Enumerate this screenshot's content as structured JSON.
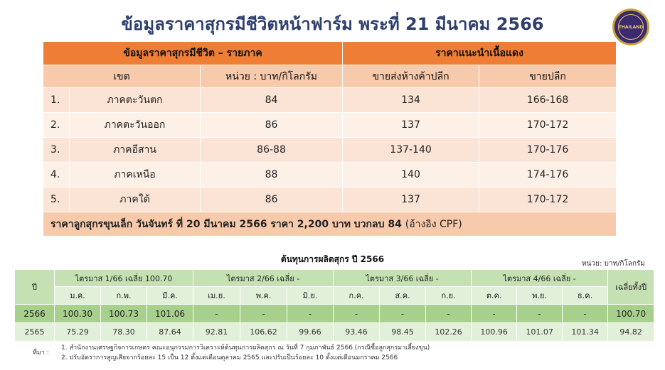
{
  "title": "ข้อมูลราคาสุกรมีชีวิตหน้าฟาร์ม พระที่ 21 มีนาคม 2566",
  "logo_text": "THAILAND",
  "regional": {
    "header_left": "ข้อมูลราคาสุกรมีชีวิต – รายภาค",
    "header_right": "ราคาแนะนำเนื้อแดง",
    "col_zone": "เขต",
    "col_unit": "หน่วย : บาท/กิโลกรัม",
    "col_wholesale": "ขายส่งห้างค้าปลีก",
    "col_retail": "ขายปลีก",
    "rows": [
      {
        "no": "1.",
        "zone": "ภาคตะวันตก",
        "price": "84",
        "wholesale": "134",
        "retail": "166-168"
      },
      {
        "no": "2.",
        "zone": "ภาคตะวันออก",
        "price": "86",
        "wholesale": "137",
        "retail": "170-172"
      },
      {
        "no": "3.",
        "zone": "ภาคอีสาน",
        "price": "86-88",
        "wholesale": "137-140",
        "retail": "170-176"
      },
      {
        "no": "4.",
        "zone": "ภาคเหนือ",
        "price": "88",
        "wholesale": "140",
        "retail": "174-176"
      },
      {
        "no": "5.",
        "zone": "ภาคใต้",
        "price": "86",
        "wholesale": "137",
        "retail": "170-172"
      }
    ],
    "piglet_note": "ราคาลูกสุกรขุนเล็ก วันจันทร์ ที่ 20 มีนาคม 2566 ราคา 2,200 บาท บวกลบ 84",
    "piglet_ref": "(อ้างอิง CPF)"
  },
  "cost": {
    "title": "ต้นทุนการผลิตสุกร ปี 2566",
    "unit": "หน่วย: บาท/กิโลกรัม",
    "col_year": "ปี",
    "col_avg": "เฉลี่ยทั้งปี",
    "quarters": [
      "ไตรมาส 1/66 เฉลี่ย  100.70",
      "ไตรมาส 2/66 เฉลี่ย -",
      "ไตรมาส 3/66 เฉลี่ย -",
      "ไตรมาส 4/66 เฉลี่ย -"
    ],
    "months": [
      "ม.ค.",
      "ก.พ.",
      "มี.ค.",
      "เม.ย.",
      "พ.ค.",
      "มิ.ย.",
      "ก.ค.",
      "ส.ค.",
      "ก.ย.",
      "ต.ค.",
      "พ.ย.",
      "ธ.ค."
    ],
    "rows": [
      {
        "year": "2566",
        "values": [
          "100.30",
          "100.73",
          "101.06",
          "-",
          "-",
          "-",
          "-",
          "-",
          "-",
          "-",
          "-",
          "-"
        ],
        "avg": "100.70"
      },
      {
        "year": "2565",
        "values": [
          "75.29",
          "78.30",
          "87.64",
          "92.81",
          "106.62",
          "99.66",
          "93.46",
          "98.45",
          "102.26",
          "100.96",
          "101.07",
          "101.34"
        ],
        "avg": "94.82"
      }
    ]
  },
  "notes": {
    "label": "ที่มา :",
    "line1": "1. สำนักงานเศรษฐกิจการเกษตร คณะอนุกรรมการวิเคราะห์ต้นทุนการผลิตสุกร ณ วันที่ 7 กุมภาพันธ์ 2566 (กรณีซื้อลูกสุกรมาเลี้ยงขุน)",
    "line2": "2. ปรับอัตราการสูญเสียจากร้อยละ 15 เป็น 12 ตั้งแต่เดือนตุลาคม 2565 และปรับเป็นร้อยละ 10 ตั้งแต่เดือนมกราคม 2566"
  }
}
